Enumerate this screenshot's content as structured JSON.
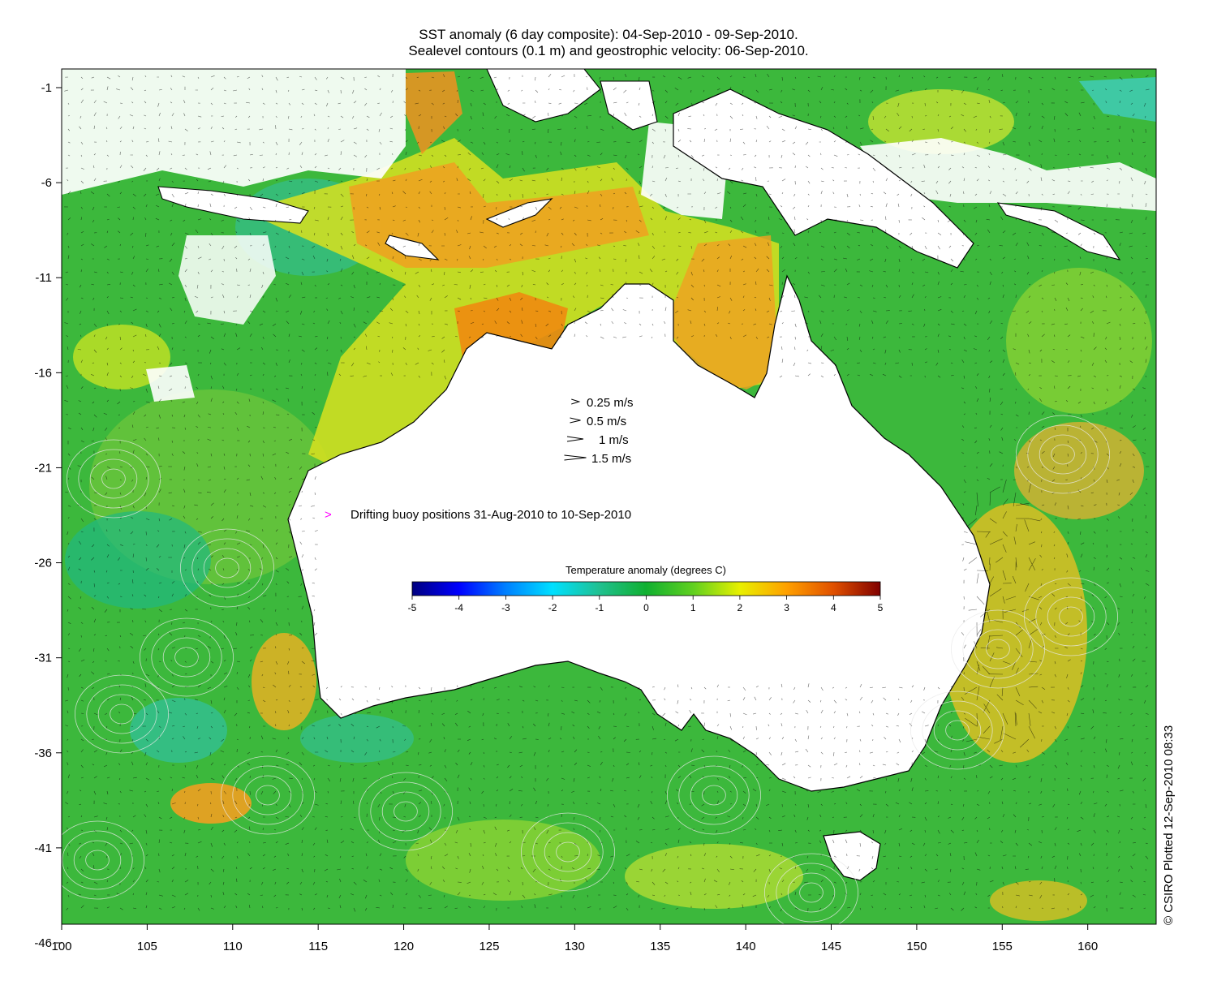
{
  "title": {
    "line1": "SST anomaly (6 day composite): 04-Sep-2010 - 09-Sep-2010.",
    "line2": "Sealevel contours (0.1 m) and geostrophic velocity: 06-Sep-2010."
  },
  "map": {
    "lon_range": [
      100,
      164
    ],
    "lat_range": [
      -46,
      -1
    ],
    "x_ticks": [
      "100",
      "105",
      "110",
      "115",
      "120",
      "125",
      "130",
      "135",
      "140",
      "145",
      "150",
      "155",
      "160"
    ],
    "y_ticks": [
      "-1",
      "-6",
      "-11",
      "-16",
      "-21",
      "-26",
      "-31",
      "-36",
      "-41",
      "-46"
    ]
  },
  "velocity_legend": [
    {
      "label": "0.25 m/s",
      "speed": 0.25
    },
    {
      "label": "0.5 m/s",
      "speed": 0.5
    },
    {
      "label": "1 m/s",
      "speed": 1
    },
    {
      "label": "1.5 m/s",
      "speed": 1.5
    }
  ],
  "buoy_legend": {
    "symbol": ">",
    "label": "Drifting buoy positions 31-Aug-2010 to 10-Sep-2010",
    "color": "#ff00ff"
  },
  "colorbar": {
    "title": "Temperature anomaly (degrees C)",
    "ticks": [
      "-5",
      "-4",
      "-3",
      "-2",
      "-1",
      "0",
      "1",
      "2",
      "3",
      "4",
      "5"
    ],
    "range": [
      -5,
      5
    ],
    "stops": [
      "#00007f",
      "#0000ff",
      "#0080ff",
      "#00e0ff",
      "#20c090",
      "#10b030",
      "#60d020",
      "#e8f000",
      "#ffa000",
      "#e05000",
      "#800000"
    ]
  },
  "credit": "© CSIRO Plotted 12-Sep-2010 08:33",
  "colors": {
    "ocean_base": "#3cb83c",
    "land": "#ffffff",
    "coast": "#000000",
    "contour": "#e8e8e8"
  }
}
